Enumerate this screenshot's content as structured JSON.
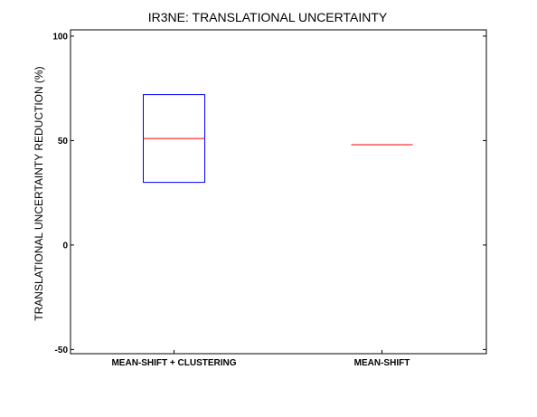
{
  "chart_data": {
    "type": "box",
    "title": "IR3NE: TRANSLATIONAL UNCERTAINTY",
    "xlabel": "",
    "ylabel": "TRANSLATIONAL UNCERTAINTY REDUCTION (%)",
    "ylim": [
      -52,
      103
    ],
    "yticks": [
      -50,
      0,
      50,
      100
    ],
    "grid": false,
    "categories": [
      "MEAN-SHIFT + CLUSTERING",
      "MEAN-SHIFT"
    ],
    "boxes": [
      {
        "category": "MEAN-SHIFT + CLUSTERING",
        "q1": 30,
        "median": 51,
        "q3": 72
      },
      {
        "category": "MEAN-SHIFT",
        "q1": 48,
        "median": 48,
        "q3": 48
      }
    ],
    "colors": {
      "box": "#0000ff",
      "median": "#ff0000",
      "axes": "#000000"
    }
  }
}
